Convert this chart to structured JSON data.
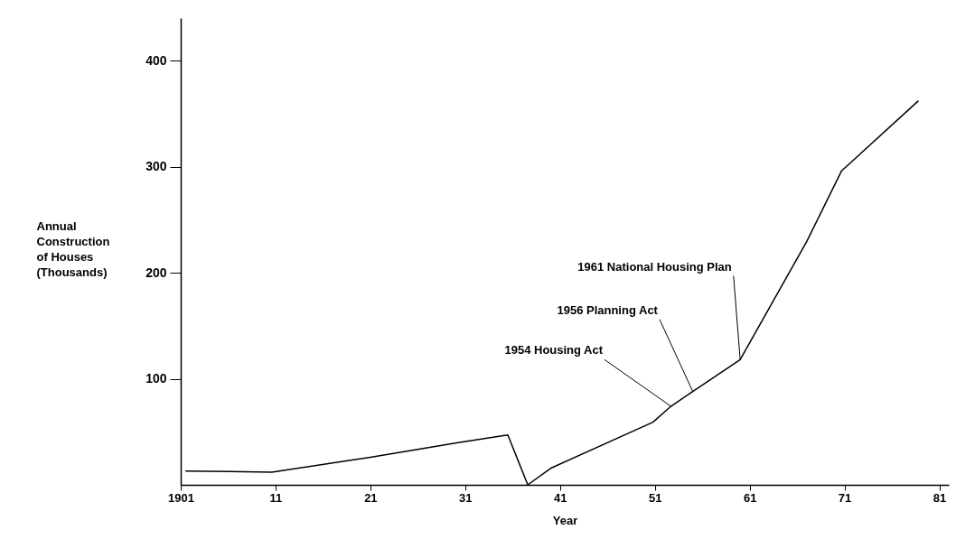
{
  "chart_data": {
    "type": "line",
    "xlabel": "Year",
    "ylabel": "Annual\nConstruction\nof Houses\n(Thousands)",
    "x": [
      1901.5,
      1910.6,
      1921,
      1930.4,
      1935.5,
      1937.6,
      1940.1,
      1950.8,
      1952.7,
      1955,
      1960,
      1967,
      1970.7,
      1978.8
    ],
    "series": [
      {
        "color": "#000000",
        "values": [
          13,
          12,
          26,
          40,
          47,
          0,
          16,
          59,
          74,
          88,
          118,
          229,
          296,
          362
        ]
      }
    ],
    "xlim": [
      1901,
      1982
    ],
    "xticks": [
      {
        "value": 1901,
        "label": "1901"
      },
      {
        "value": 1911,
        "label": "11"
      },
      {
        "value": 1921,
        "label": "21"
      },
      {
        "value": 1931,
        "label": "31"
      },
      {
        "value": 1941,
        "label": "41"
      },
      {
        "value": 1951,
        "label": "51"
      },
      {
        "value": 1961,
        "label": "61"
      },
      {
        "value": 1971,
        "label": "71"
      },
      {
        "value": 1981,
        "label": "81"
      }
    ],
    "ylim": [
      0,
      440
    ],
    "yticks": [
      100,
      200,
      300,
      400
    ],
    "grid": false,
    "marker": "none",
    "line_style": "solid",
    "annotations": [
      {
        "text": "1954 Housing Act",
        "x": 1952.7,
        "y": 74
      },
      {
        "text": "1956 Planning Act",
        "x": 1955,
        "y": 88
      },
      {
        "text": "1961 National Housing Plan",
        "x": 1960,
        "y": 118
      }
    ]
  }
}
